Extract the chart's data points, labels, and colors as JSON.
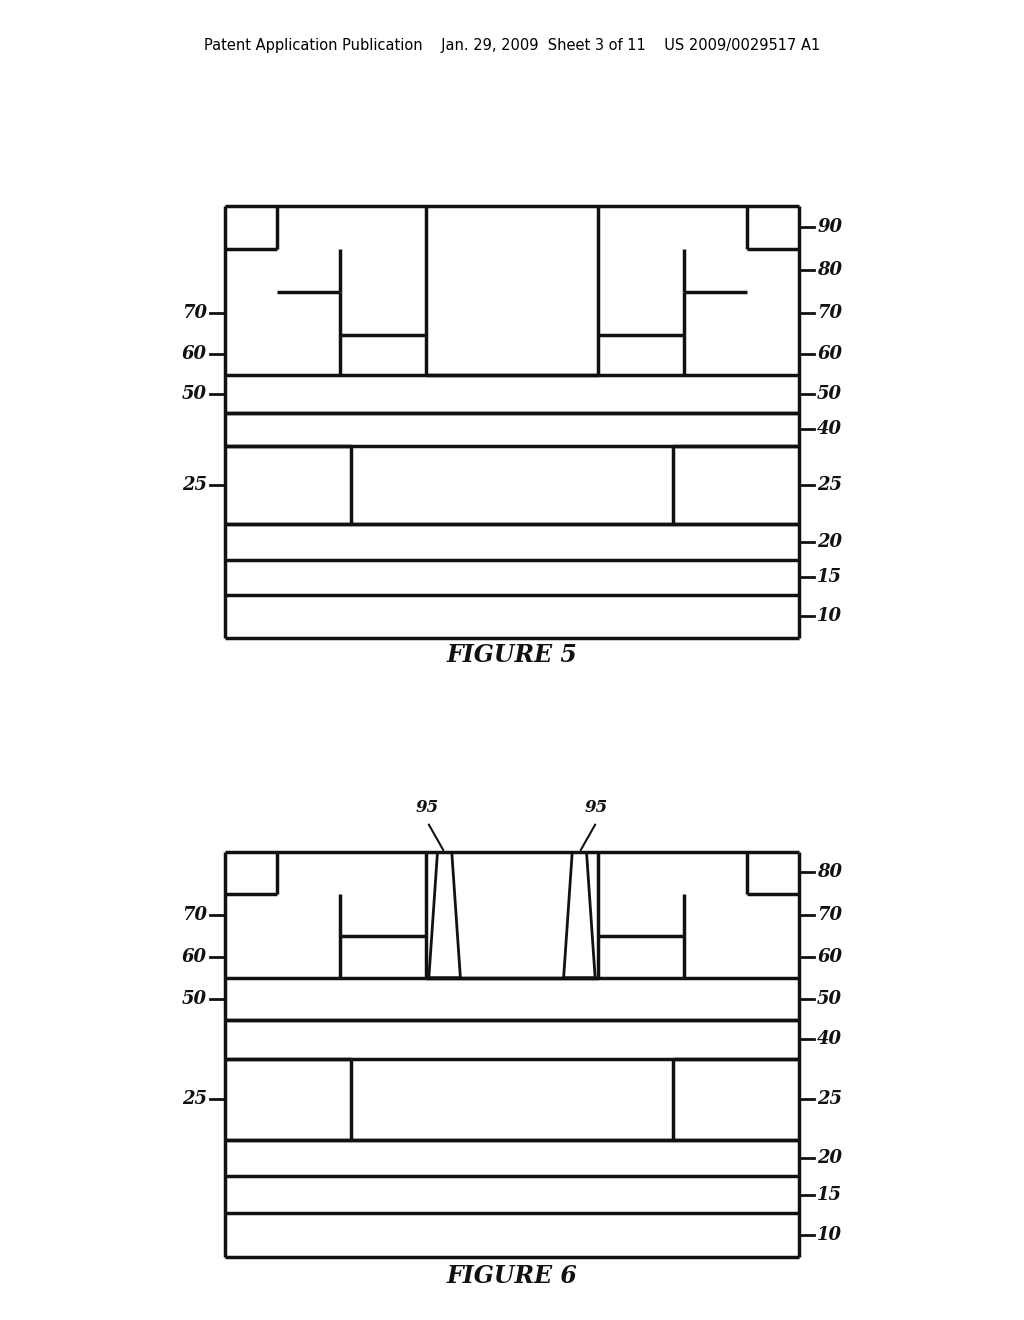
{
  "bg_color": "#ffffff",
  "line_color": "#111111",
  "lw": 2.5,
  "header_text": "Patent Application Publication    Jan. 29, 2009  Sheet 3 of 11    US 2009/0029517 A1",
  "fig5_title": "FIGURE 5",
  "fig6_title": "FIGURE 6",
  "fig5_right_labels": [
    [
      "90",
      0.88
    ],
    [
      "80",
      0.815
    ],
    [
      "70",
      0.735
    ],
    [
      "60",
      0.66
    ],
    [
      "50",
      0.585
    ],
    [
      "40",
      0.52
    ],
    [
      "25",
      0.37
    ],
    [
      "20",
      0.305
    ],
    [
      "15",
      0.24
    ],
    [
      "10",
      0.16
    ]
  ],
  "fig5_left_labels": [
    [
      "70",
      0.735
    ],
    [
      "60",
      0.66
    ],
    [
      "50",
      0.585
    ],
    [
      "25",
      0.37
    ]
  ],
  "fig6_right_labels": [
    [
      "80",
      0.875
    ],
    [
      "70",
      0.8
    ],
    [
      "60",
      0.725
    ],
    [
      "50",
      0.645
    ],
    [
      "40",
      0.575
    ],
    [
      "25",
      0.37
    ],
    [
      "20",
      0.305
    ],
    [
      "15",
      0.24
    ],
    [
      "10",
      0.16
    ]
  ],
  "fig6_left_labels": [
    [
      "70",
      0.8
    ],
    [
      "60",
      0.725
    ],
    [
      "50",
      0.645
    ],
    [
      "25",
      0.37
    ]
  ]
}
